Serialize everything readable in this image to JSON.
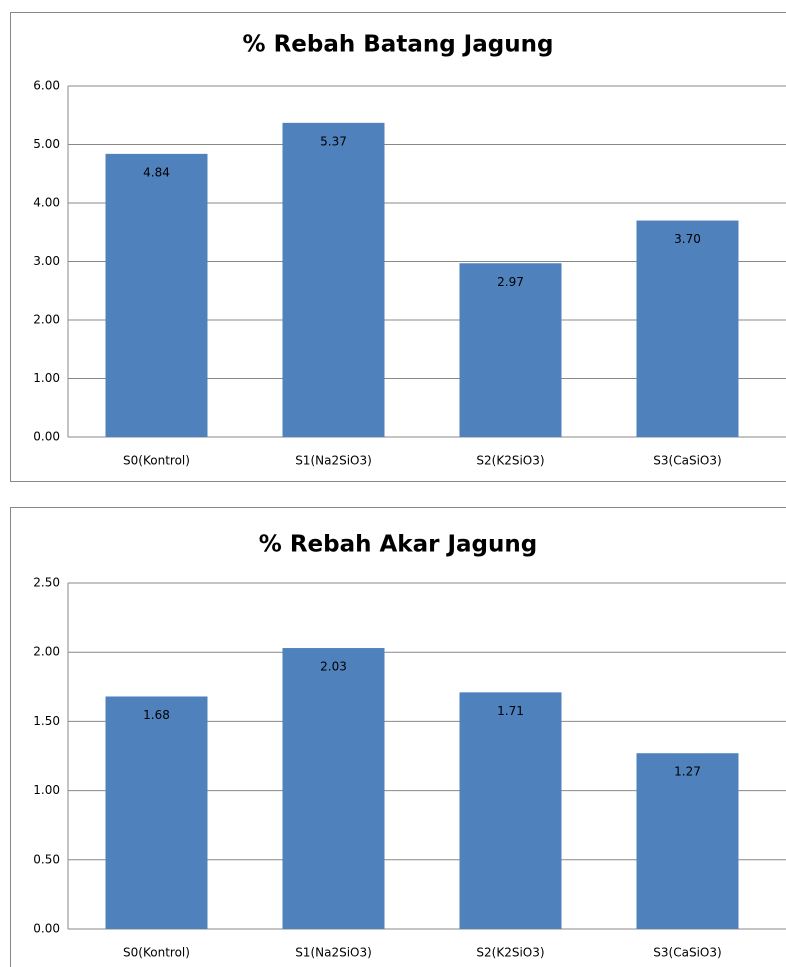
{
  "chart_data": [
    {
      "type": "bar",
      "title": "% Rebah Batang Jagung",
      "categories": [
        "S0(Kontrol)",
        "S1(Na2SiO3)",
        "S2(K2SiO3)",
        "S3(CaSiO3)"
      ],
      "values": [
        4.84,
        5.37,
        2.97,
        3.7
      ],
      "value_labels": [
        "4.84",
        "5.37",
        "2.97",
        "3.70"
      ],
      "color": "#4f81bd",
      "ylim": [
        0,
        6
      ],
      "yticks": [
        {
          "value": 0,
          "label": "0.00"
        },
        {
          "value": 1,
          "label": "1.00"
        },
        {
          "value": 2,
          "label": "2.00"
        },
        {
          "value": 3,
          "label": "3.00"
        },
        {
          "value": 4,
          "label": "4.00"
        },
        {
          "value": 5,
          "label": "5.00"
        },
        {
          "value": 6,
          "label": "6.00"
        }
      ],
      "grid": true
    },
    {
      "type": "bar",
      "title": "% Rebah Akar Jagung",
      "categories": [
        "S0(Kontrol)",
        "S1(Na2SiO3)",
        "S2(K2SiO3)",
        "S3(CaSiO3)"
      ],
      "values": [
        1.68,
        2.03,
        1.71,
        1.27
      ],
      "value_labels": [
        "1.68",
        "2.03",
        "1.71",
        "1.27"
      ],
      "color": "#4f81bd",
      "ylim": [
        0,
        2.5
      ],
      "yticks": [
        {
          "value": 0,
          "label": "0.00"
        },
        {
          "value": 0.5,
          "label": "0.50"
        },
        {
          "value": 1,
          "label": "1.00"
        },
        {
          "value": 1.5,
          "label": "1.50"
        },
        {
          "value": 2,
          "label": "2.00"
        },
        {
          "value": 2.5,
          "label": "2.50"
        }
      ],
      "grid": true
    }
  ]
}
